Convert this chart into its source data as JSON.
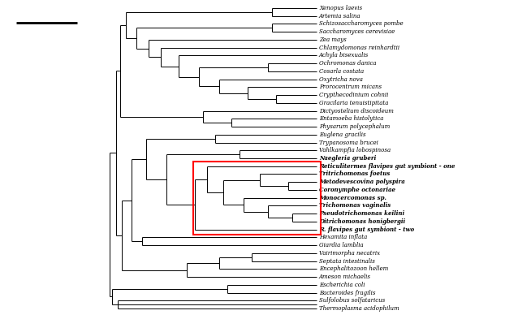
{
  "background_color": "#ffffff",
  "tree_color": "#000000",
  "scale_bar_color": "#000000",
  "leaf_font_size": 5.0,
  "bold_taxa": [
    "Reticulitermes flavipes gut symbiont - one",
    "Tritrichomonas foetus",
    "Metadevescovina polyspira",
    "Coronymphe octonariae",
    "Monocercomonas sp.",
    "Trichomonas vaginalis",
    "Pseudotrichomonas keilini",
    "Ditrichomonas honigbergii",
    "R. flavipes gut symbiont - two",
    "Naegleria gruberi"
  ],
  "taxa": [
    "Xenopus laevis",
    "Artemia salina",
    "Schizosaccharomyces pombe",
    "Saccharomyces cerevisiae",
    "Zea mays",
    "Chlamydomonas reinhardtii",
    "Achyla bisexualis",
    "Ochromonas danica",
    "Cosarla costata",
    "Oxytricha nova",
    "Prorocentrum micans",
    "Crypthecodinium cohnii",
    "Gracilaria tenuistipitata",
    "Dictyostelium discoideum",
    "Entamoeba histolytica",
    "Physarum polycephalum",
    "Euglena gracilis",
    "Trypanosoma brucei",
    "Vahlkampfia lobospinosa",
    "Naegleria gruberi",
    "Reticulitermes flavipes gut symbiont - one",
    "Tritrichomonas foetus",
    "Metadevescovina polyspira",
    "Coronymphe octonariae",
    "Monocercomonas sp.",
    "Trichomonas vaginalis",
    "Pseudotrichomonas keilini",
    "Ditrichomonas honigbergii",
    "R. flavipes gut symbiont - two",
    "Hexamita inflata",
    "Giardia lamblia",
    "Vairimorpha necatrix",
    "Septata intestinalis",
    "Encephalitozoon hellem",
    "Ameson michaelis",
    "Escherichia coli",
    "Bacteroides fragilis",
    "Sulfolobus solfataricus",
    "Thermoplasma acidophilum"
  ]
}
